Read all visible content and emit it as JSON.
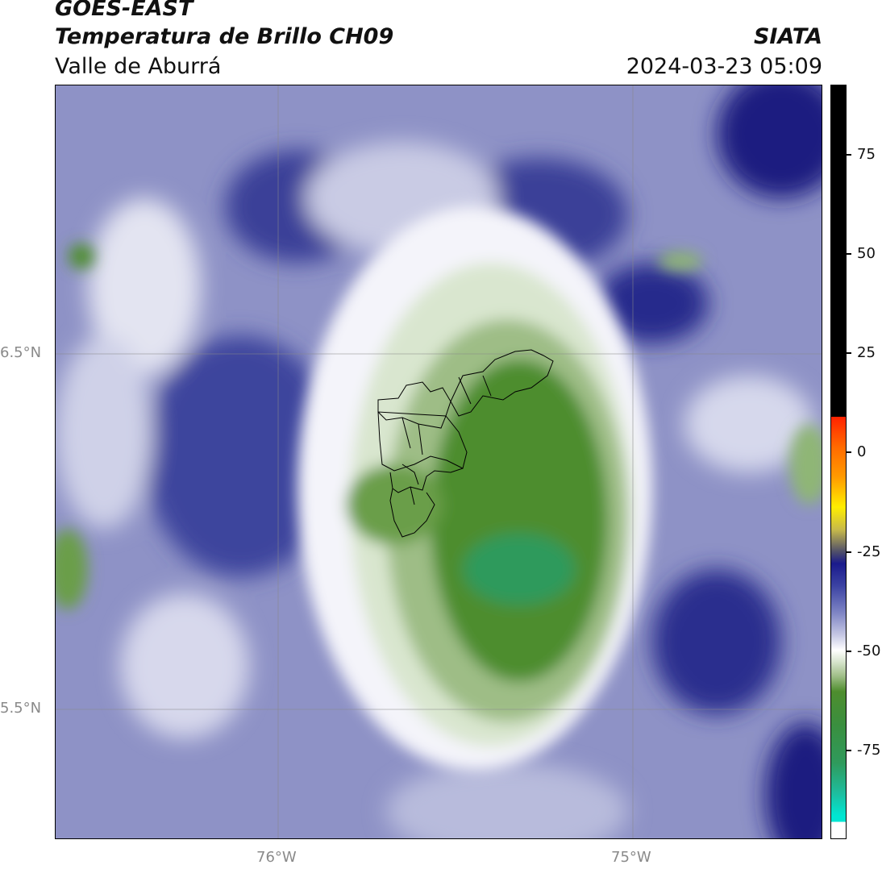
{
  "header": {
    "line1": "GOES-EAST",
    "line2": "Temperatura de Brillo CH09",
    "line3": "Valle de Aburrá",
    "org": "SIATA",
    "datetime": "2024-03-23 05:09"
  },
  "map": {
    "lat_labels": [
      "6.5°N",
      "5.5°N"
    ],
    "lon_labels": [
      "76°W",
      "75°W"
    ],
    "colors": {
      "dark_blue": "#1c1f80",
      "mid_blue": "#5d63ad",
      "light_blue": "#a7aad3",
      "pale": "#e3e4f1",
      "white": "#ffffff",
      "pale_green": "#d9e6cf",
      "light_green": "#9ebd86",
      "green": "#4e8d2e",
      "teal_green": "#2f9a5c"
    }
  },
  "colorbar": {
    "labels": [
      "75",
      "50",
      "25",
      "0",
      "-25",
      "-50",
      "-75"
    ],
    "colors": {
      "black": "#000000",
      "red": "#ff2200",
      "yellow": "#ffee00",
      "navy": "#1a1a8c",
      "cyan": "#00e6d2"
    }
  }
}
